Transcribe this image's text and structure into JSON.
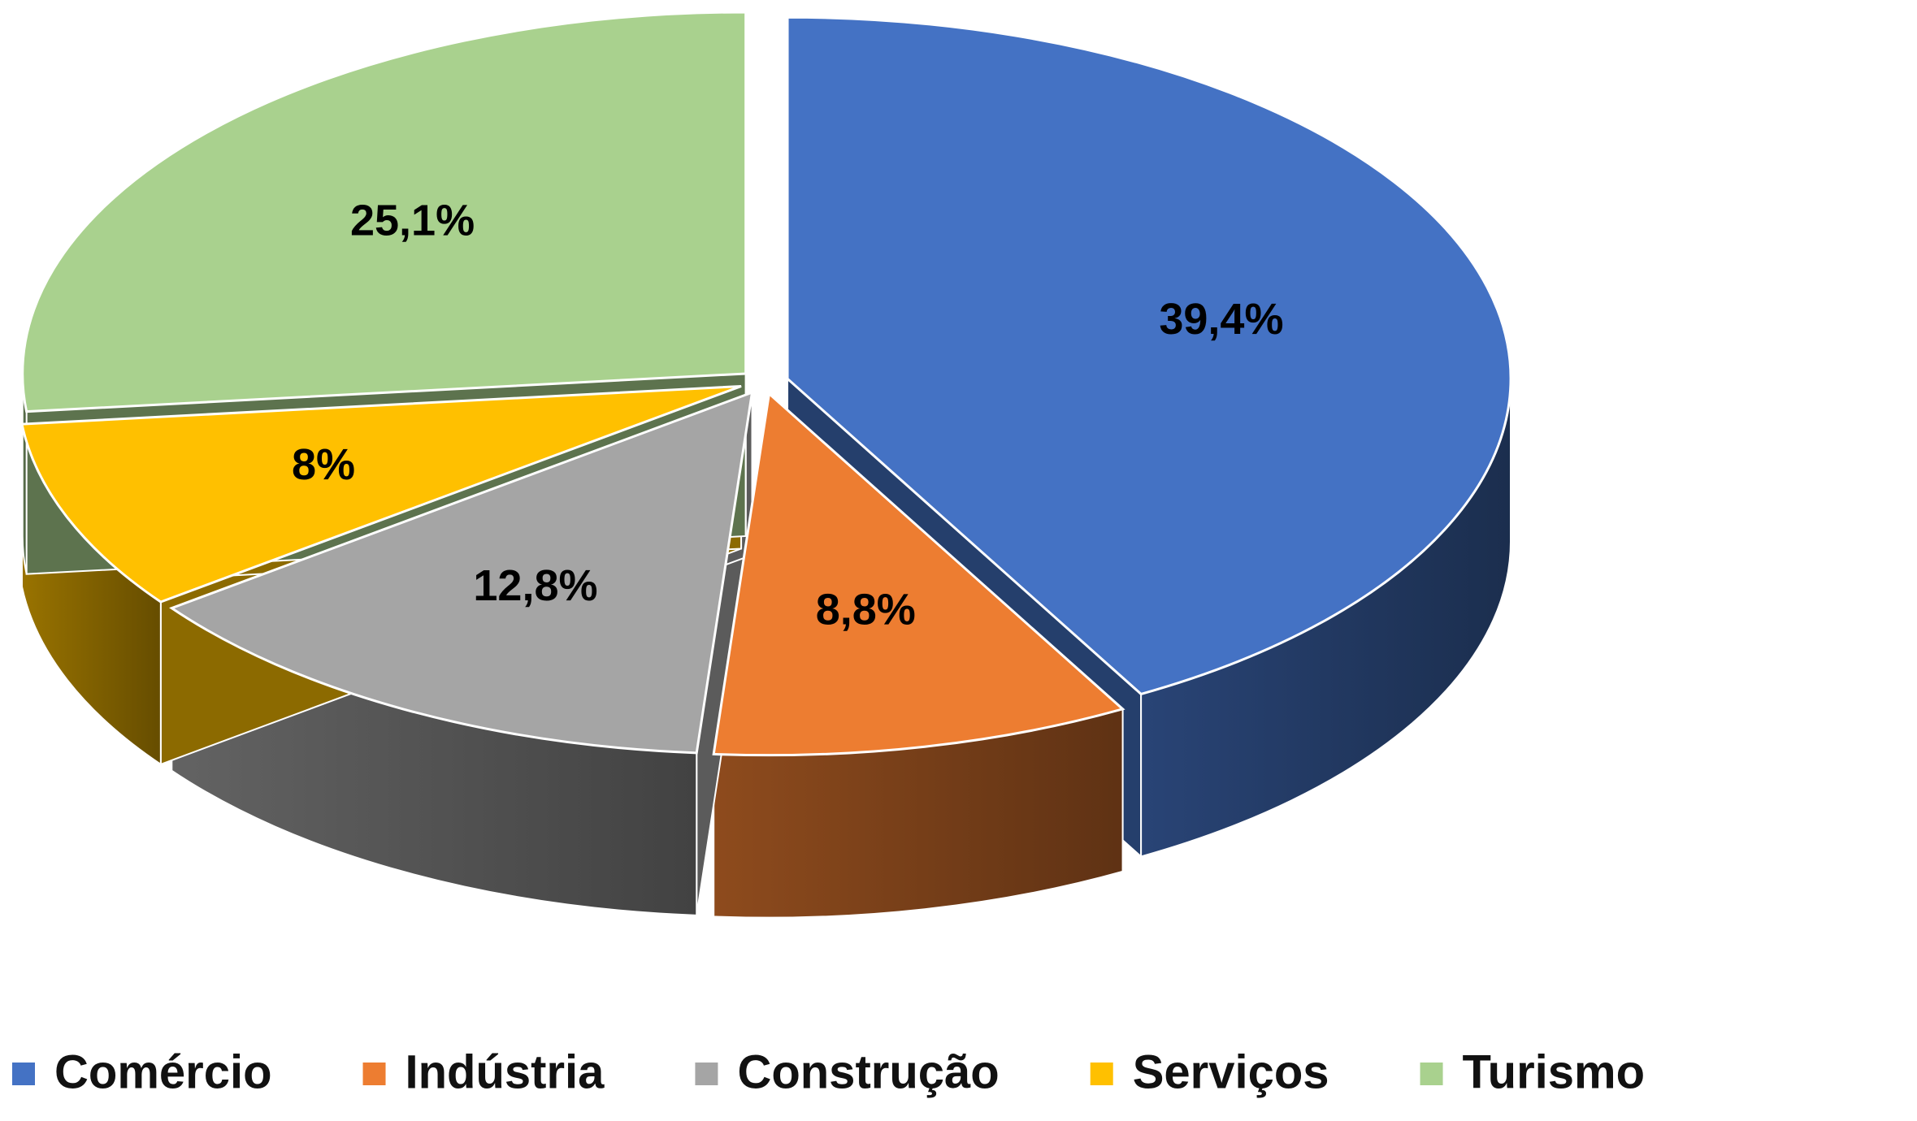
{
  "chart_data": {
    "type": "pie",
    "categories": [
      "Comércio",
      "Indústria",
      "Construção",
      "Serviços",
      "Turismo"
    ],
    "values": [
      39.4,
      8.8,
      12.8,
      8,
      25.1
    ],
    "value_labels": [
      "39,4%",
      "8,8%",
      "12,8%",
      "8%",
      "25,1%"
    ],
    "colors": [
      "#4472c4",
      "#ed7d31",
      "#a5a5a5",
      "#ffc000",
      "#a9d18e"
    ],
    "legend": "bottom"
  }
}
